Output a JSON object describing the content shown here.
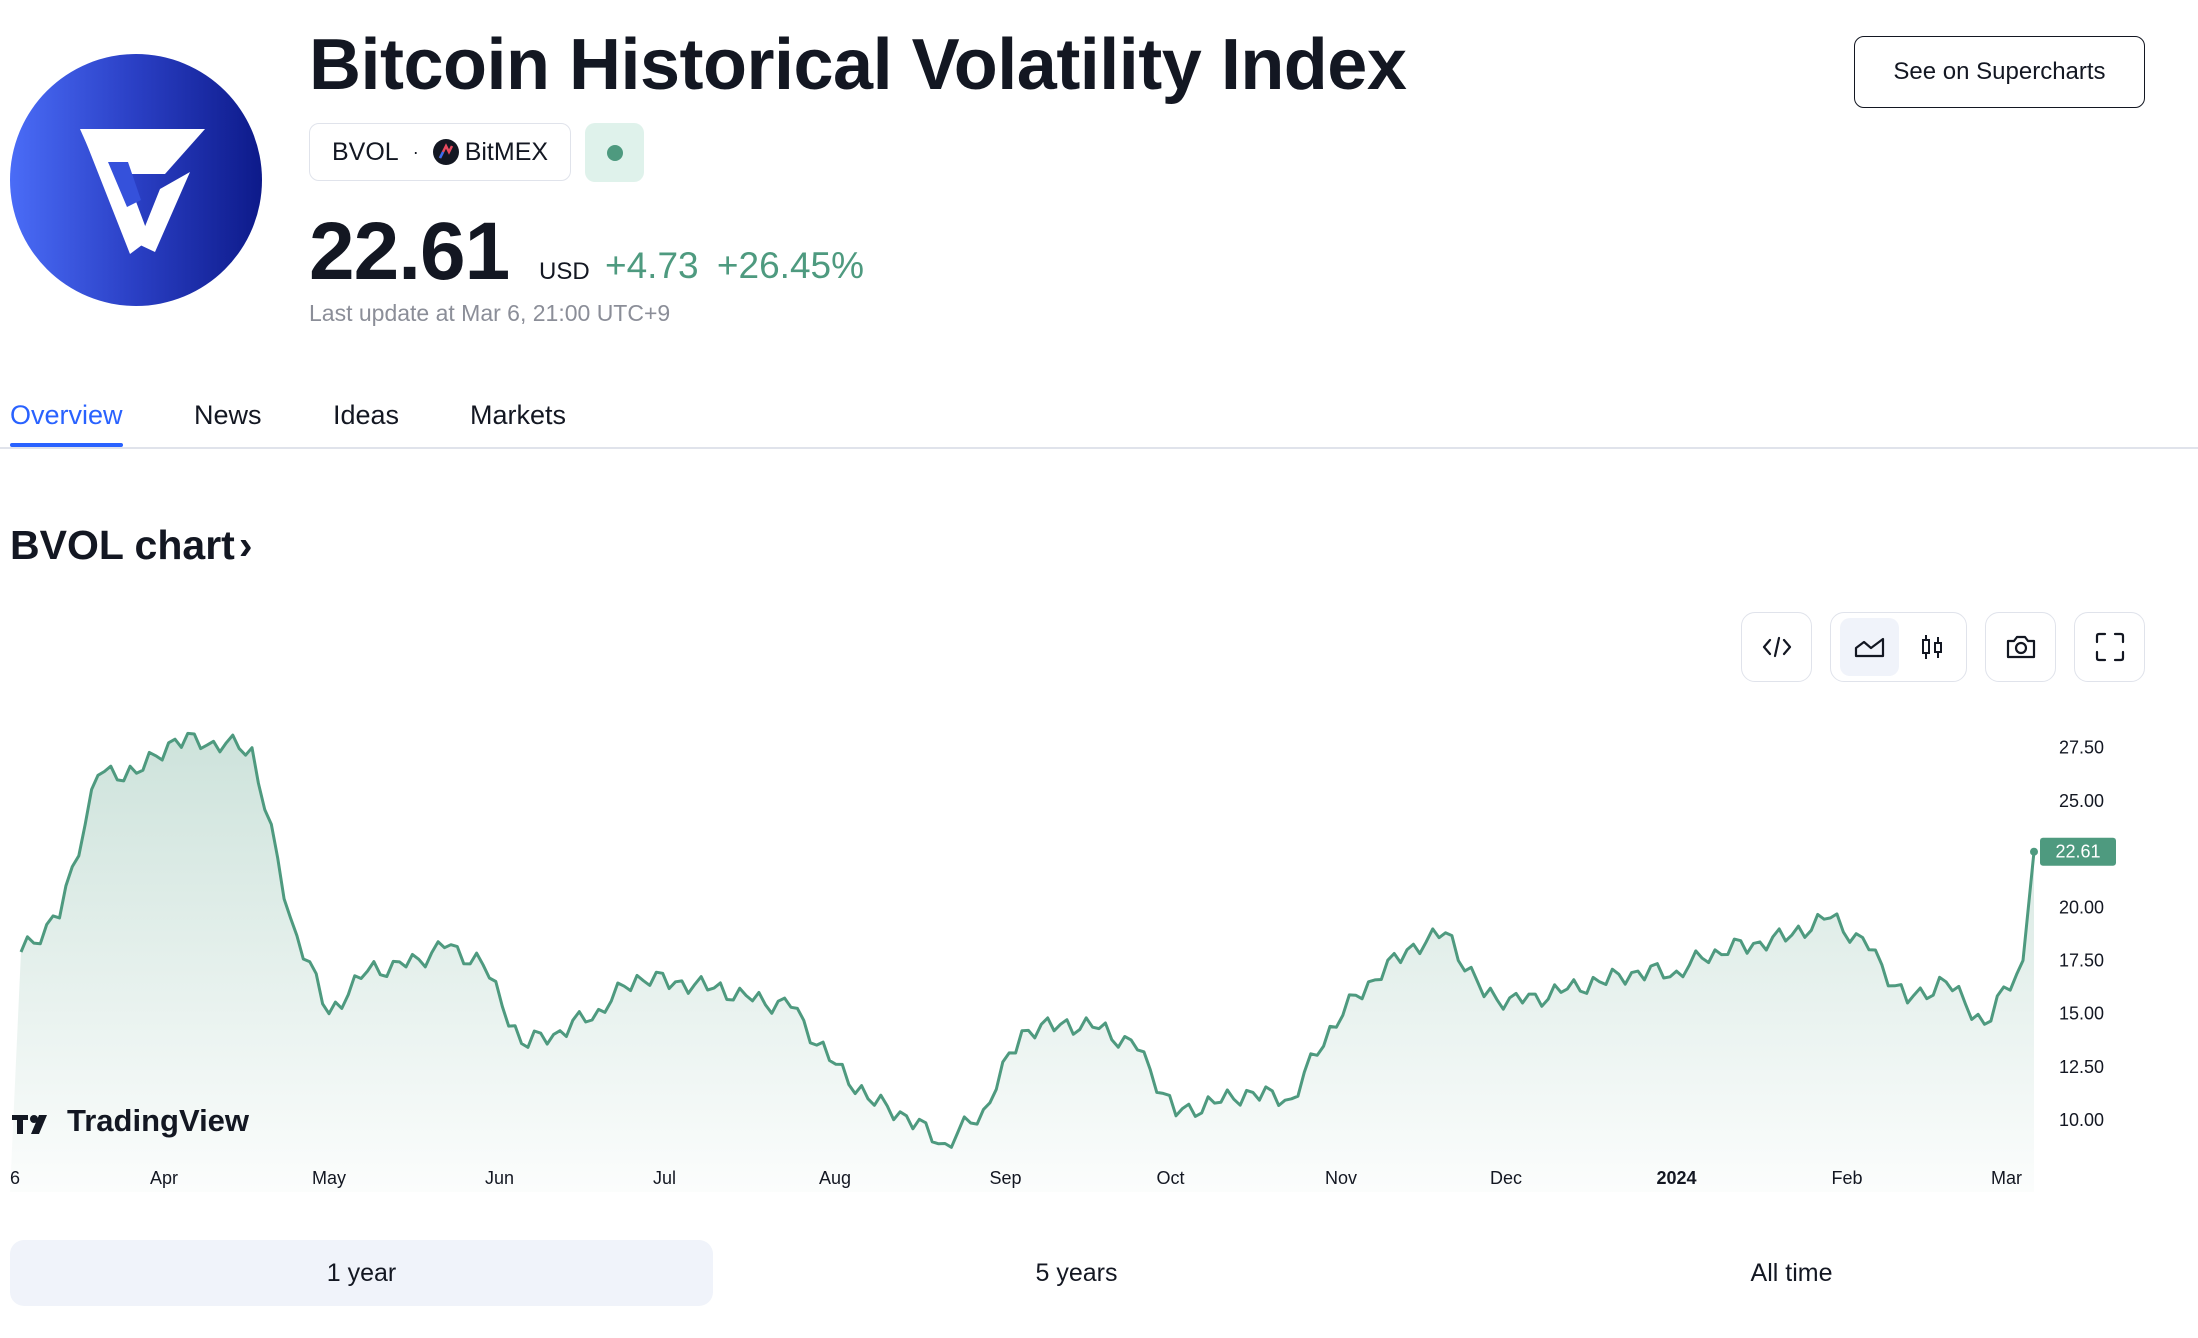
{
  "header": {
    "title": "Bitcoin Historical Volatility Index",
    "symbol": "BVOL",
    "separator": "·",
    "exchange": "BitMEX",
    "price": "22.61",
    "currency": "USD",
    "change": "+4.73",
    "change_percent": "+26.45%",
    "last_update": "Last update at Mar 6, 21:00 UTC+9",
    "supercharts_button": "See on Supercharts"
  },
  "tabs": [
    "Overview",
    "News",
    "Ideas",
    "Markets"
  ],
  "chart_section": {
    "title": "BVOL chart",
    "title_chevron": "›",
    "watermark": "TradingView",
    "toolbar_icons": [
      "embed-code-icon",
      "area-chart-icon",
      "candlestick-icon",
      "camera-icon",
      "fullscreen-icon"
    ]
  },
  "ranges": [
    "1 year",
    "5 years",
    "All time"
  ],
  "colors": {
    "accent": "#2962ff",
    "positive": "#4e9a7f",
    "line": "#4e9a7f"
  },
  "chart_data": {
    "type": "area",
    "x_labels": [
      "6",
      "Apr",
      "May",
      "Jun",
      "Jul",
      "Aug",
      "Sep",
      "Oct",
      "Nov",
      "Dec",
      "2024",
      "Feb",
      "Mar"
    ],
    "y_ticks": [
      10.0,
      12.5,
      15.0,
      17.5,
      20.0,
      25.0,
      27.5
    ],
    "ylim": [
      8.5,
      28.8
    ],
    "last_value": 22.61,
    "x": [
      "2023-03-06",
      "2023-03-13",
      "2023-03-20",
      "2023-03-27",
      "2023-04-03",
      "2023-04-10",
      "2023-04-17",
      "2023-04-24",
      "2023-05-01",
      "2023-05-08",
      "2023-05-15",
      "2023-05-22",
      "2023-05-29",
      "2023-06-05",
      "2023-06-12",
      "2023-06-19",
      "2023-06-26",
      "2023-07-03",
      "2023-07-10",
      "2023-07-17",
      "2023-07-24",
      "2023-07-31",
      "2023-08-07",
      "2023-08-14",
      "2023-08-21",
      "2023-08-28",
      "2023-09-04",
      "2023-09-11",
      "2023-09-18",
      "2023-09-25",
      "2023-10-02",
      "2023-10-09",
      "2023-10-16",
      "2023-10-23",
      "2023-10-30",
      "2023-11-06",
      "2023-11-13",
      "2023-11-20",
      "2023-11-27",
      "2023-12-04",
      "2023-12-11",
      "2023-12-18",
      "2023-12-25",
      "2024-01-01",
      "2024-01-08",
      "2024-01-15",
      "2024-01-22",
      "2024-01-29",
      "2024-02-05",
      "2024-02-12",
      "2024-02-19",
      "2024-02-26",
      "2024-03-04",
      "2024-03-06"
    ],
    "values": [
      17.9,
      19.5,
      26.2,
      26.3,
      27.9,
      27.8,
      27.5,
      19.5,
      15.0,
      17.0,
      17.2,
      18.1,
      17.3,
      13.6,
      14.2,
      15.2,
      16.8,
      16.5,
      16.2,
      15.6,
      15.3,
      12.8,
      11.0,
      10.2,
      8.9,
      10.5,
      14.2,
      14.5,
      14.3,
      13.3,
      10.2,
      10.8,
      11.3,
      11.0,
      14.4,
      16.5,
      18.0,
      18.8,
      15.8,
      15.5,
      16.0,
      16.5,
      17.0,
      17.0,
      18.0,
      18.3,
      18.7,
      19.5,
      18.0,
      15.5,
      16.5,
      14.5,
      17.5,
      22.61
    ]
  }
}
